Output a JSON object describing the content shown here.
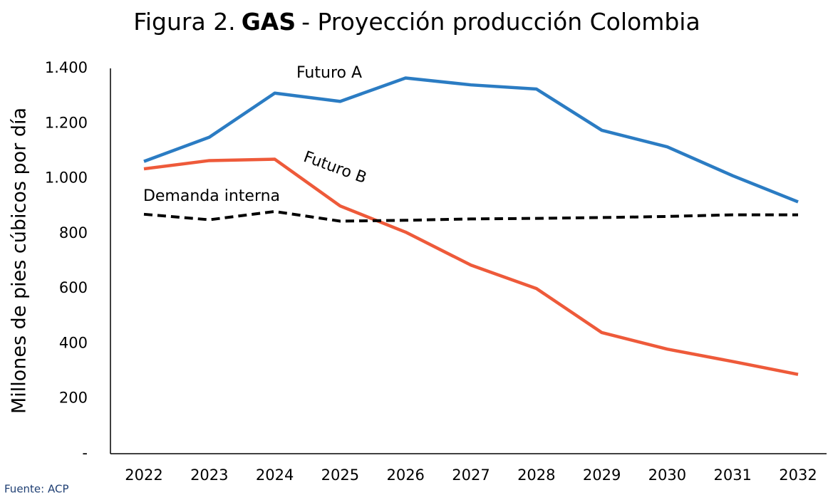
{
  "chart_data": {
    "type": "line",
    "title_parts": [
      "Figura 2.",
      "GAS",
      "- Proyección producción Colombia"
    ],
    "y_label": "Millones de pies cúbicos por día",
    "source": "Fuente: ACP",
    "categories": [
      "2022",
      "2023",
      "2024",
      "2025",
      "2026",
      "2027",
      "2028",
      "2029",
      "2030",
      "2031",
      "2032"
    ],
    "series": [
      {
        "name": "Futuro A",
        "color": "#2b7cc3",
        "dashed": false,
        "values": [
          1062,
          1150,
          1310,
          1280,
          1365,
          1340,
          1325,
          1175,
          1115,
          1010,
          915
        ]
      },
      {
        "name": "Futuro B",
        "color": "#ee5a3a",
        "dashed": false,
        "values": [
          1035,
          1065,
          1070,
          900,
          805,
          685,
          600,
          440,
          380,
          335,
          288
        ]
      },
      {
        "name": "Demanda interna",
        "color": "#000000",
        "dashed": true,
        "values": [
          870,
          850,
          880,
          845,
          848,
          853,
          855,
          858,
          862,
          868,
          868
        ]
      }
    ],
    "ylim": [
      0,
      1400
    ],
    "yticks": [
      {
        "value": 0,
        "label": "-"
      },
      200,
      400,
      600,
      800,
      {
        "value": 1000,
        "label": "1.000"
      },
      {
        "value": 1200,
        "label": "1.200"
      },
      {
        "value": 1400,
        "label": "1.400"
      }
    ],
    "grid": false
  }
}
